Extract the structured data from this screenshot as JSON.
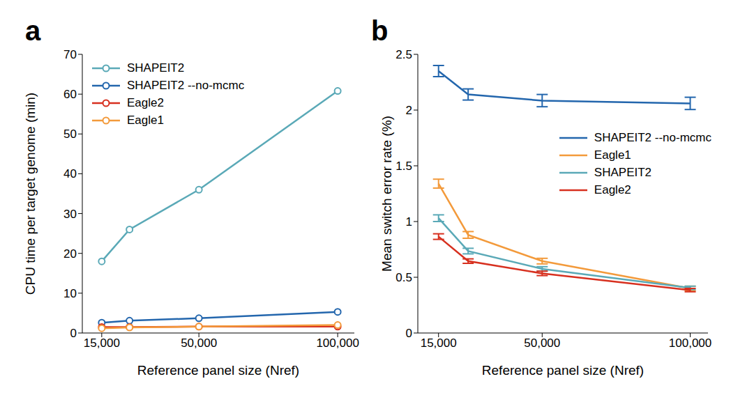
{
  "chart_data": [
    {
      "type": "line",
      "title": "a",
      "x_label": "Reference panel size (Nref)",
      "y_label": "CPU time per target genome (min)",
      "x": [
        15000,
        25000,
        50000,
        100000
      ],
      "xlim": [
        8000,
        106000
      ],
      "xticks": [
        {
          "value": 15000,
          "label": "15,000"
        },
        {
          "value": 50000,
          "label": "50,000"
        },
        {
          "value": 100000,
          "label": "100,000"
        }
      ],
      "ylim": [
        0,
        70
      ],
      "yticks": [
        0,
        10,
        20,
        30,
        40,
        50,
        60,
        70
      ],
      "grid": false,
      "legend": "upper left",
      "series": [
        {
          "name": "SHAPEIT2",
          "color": "#5aa9b7",
          "marker": "circle",
          "values": [
            18,
            26,
            36,
            60.8
          ]
        },
        {
          "name": "SHAPEIT2 --no-mcmc",
          "color": "#2366ad",
          "marker": "circle",
          "values": [
            2.6,
            3.1,
            3.7,
            5.3
          ]
        },
        {
          "name": "Eagle2",
          "color": "#d7301f",
          "marker": "circle",
          "values": [
            1.5,
            1.5,
            1.6,
            1.6
          ]
        },
        {
          "name": "Eagle1",
          "color": "#f39a3b",
          "marker": "circle",
          "values": [
            1.2,
            1.4,
            1.6,
            2.0
          ]
        }
      ]
    },
    {
      "type": "line",
      "title": "b",
      "x_label": "Reference panel size (Nref)",
      "y_label": "Mean switch error rate (%)",
      "x": [
        15000,
        25000,
        50000,
        100000
      ],
      "xlim": [
        8000,
        106000
      ],
      "xticks": [
        {
          "value": 15000,
          "label": "15,000"
        },
        {
          "value": 50000,
          "label": "50,000"
        },
        {
          "value": 100000,
          "label": "100,000"
        }
      ],
      "ylim": [
        0,
        2.5
      ],
      "yticks": [
        0,
        0.5,
        1,
        1.5,
        2,
        2.5
      ],
      "grid": false,
      "legend": "right",
      "series": [
        {
          "name": "SHAPEIT2 --no-mcmc",
          "color": "#2366ad",
          "values": [
            2.35,
            2.14,
            2.085,
            2.06
          ],
          "errors": [
            0.05,
            0.05,
            0.055,
            0.055
          ]
        },
        {
          "name": "Eagle1",
          "color": "#f39a3b",
          "values": [
            1.34,
            0.88,
            0.645,
            0.4
          ],
          "errors": [
            0.04,
            0.03,
            0.025,
            0.02
          ]
        },
        {
          "name": "SHAPEIT2",
          "color": "#5aa9b7",
          "values": [
            1.03,
            0.735,
            0.575,
            0.405
          ],
          "errors": [
            0.03,
            0.025,
            0.02,
            0.015
          ]
        },
        {
          "name": "Eagle2",
          "color": "#d7301f",
          "values": [
            0.865,
            0.645,
            0.535,
            0.385
          ],
          "errors": [
            0.025,
            0.02,
            0.02,
            0.015
          ]
        }
      ]
    }
  ]
}
